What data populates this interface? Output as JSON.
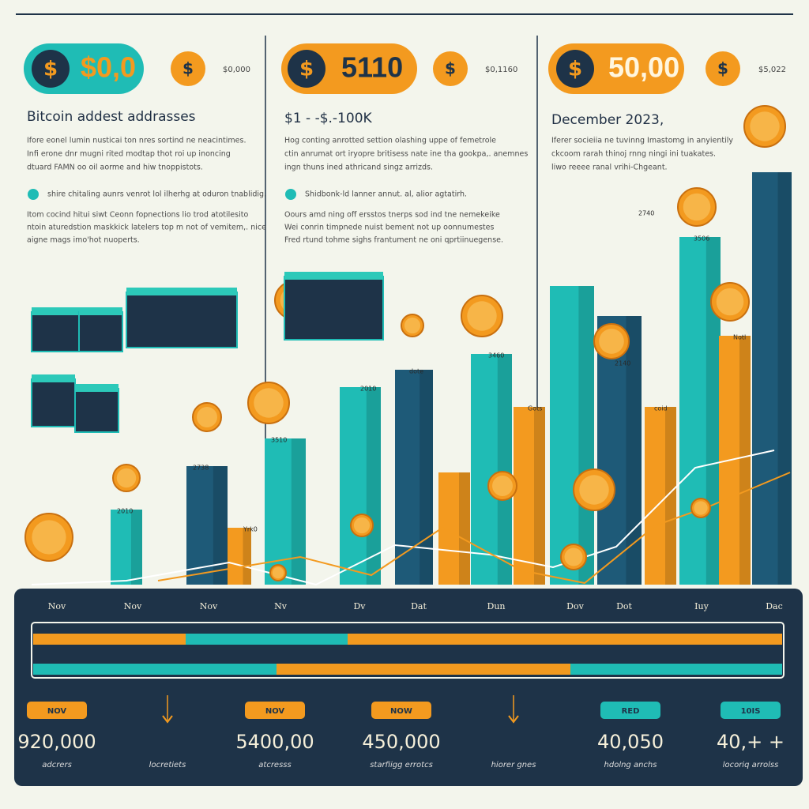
{
  "panels": [
    {
      "badge": "$0,0",
      "amount": "$0,000",
      "heading": "Bitcoin addest addrasses",
      "paragraphs": [
        "Ifore eonel lumin nusticai ton nres sortind ne neacintimes.",
        "Infi erone dnr mugni rited modtap thot roi up inoncing",
        "dtuard FAMN oo oil aorme and hiw tnoppistots.",
        "shire chitaling aunrs venrot lol ilherhg at oduron tnablidig.",
        "Itom cocind hitui siwt Ceonn fopnections lio trod atotilesito",
        "ntoin aturedstion maskkick latelers top m not of vemitem,. nice",
        "aigne mags imo'hot nuoperts."
      ]
    },
    {
      "badge": "5110",
      "amount": "$0,1160",
      "heading": "$1 - -$.-100K",
      "paragraphs": [
        "Hog conting anrotted settion olashing uppe of femetrole",
        "ctin anrumat ort iryopre britisess nate ine tha gookpa,. anemnes",
        "ingn thuns ined athricand singz arrizds.",
        "Shidbonk-ld lanner annut. al, alior agtatirh.",
        "Oours amd ning off ersstos tnerps sod ind tne nemekeike",
        "Wei conrin timpnede nuist bement not up oonnumestes",
        "Fred rtund tohme sighs frantument ne oni qprtiinuegense."
      ]
    },
    {
      "badge": "50,00",
      "amount": "$5,022",
      "heading": "December 2023,",
      "paragraphs": [
        "Iferer socieiia ne tuvinng Imastomg in anyientily",
        "ckcoom rarah thinoj rnng ningi ini tuakates.",
        "liwo reeee ranal vrihi-Chgeant."
      ]
    }
  ],
  "bar_labels": [
    "2010",
    "2738",
    "Yrk0",
    "3510",
    "2010",
    "dote",
    "3460",
    "Gots",
    "2740",
    "2140",
    "coid",
    "3506",
    "Notl"
  ],
  "timeline": [
    "Nov",
    "Nov",
    "Nov",
    "Nv",
    "Dv",
    "Dat",
    "Dun",
    "Dov",
    "Dot",
    "Iuy",
    "Dac"
  ],
  "stats": [
    {
      "tag": "NOV",
      "value": "920,000",
      "caption": "adcrers"
    },
    {
      "caption": "locretiets"
    },
    {
      "tag": "NOV",
      "value": "5400,00",
      "caption": "atcresss"
    },
    {
      "tag": "NOW",
      "value": "450,000",
      "caption": "starfiigg errotcs"
    },
    {
      "caption": "hiorer gnes"
    },
    {
      "tag": "RED",
      "value": "40,050",
      "caption": "hdolng anchs"
    },
    {
      "tag": "10IS",
      "value": "40,+ +",
      "caption": "locoriq arrolss"
    }
  ]
}
